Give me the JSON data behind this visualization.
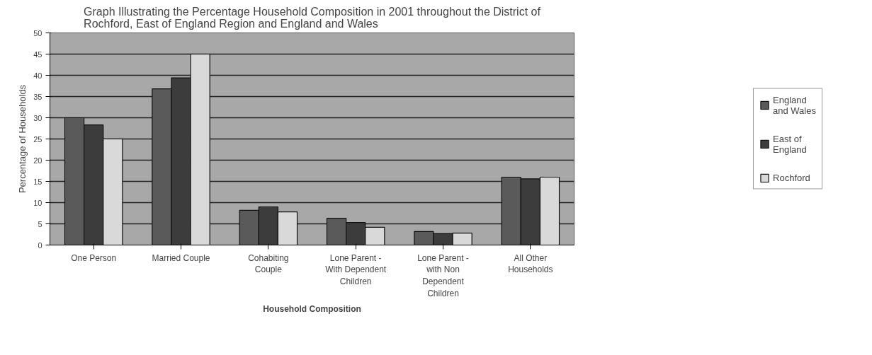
{
  "chart_data": {
    "type": "bar",
    "title": "Graph Illustrating the Percentage Household Composition in 2001 throughout the District of Rochford, East of England Region and England and Wales",
    "xlabel": "Household Composition",
    "ylabel": "Percentage of Households",
    "categories": [
      "One Person",
      "Married Couple",
      "Cohabiting Couple",
      "Lone Parent - With Dependent Children",
      "Lone Parent - with Non Dependent Children",
      "All Other Households"
    ],
    "series": [
      {
        "name": "England and Wales",
        "color": "#5a5a5a",
        "values": [
          30,
          36.8,
          8.2,
          6.3,
          3.2,
          16
        ]
      },
      {
        "name": "East of England",
        "color": "#3c3c3c",
        "values": [
          28.3,
          39.4,
          9,
          5.3,
          2.7,
          15.6
        ]
      },
      {
        "name": "Rochford",
        "color": "#d9d9d9",
        "values": [
          25,
          45,
          7.8,
          4.2,
          2.8,
          16
        ]
      }
    ],
    "ylim": [
      0,
      50
    ],
    "yticks": [
      0,
      5,
      10,
      15,
      20,
      25,
      30,
      35,
      40,
      45,
      50
    ],
    "grid": "y",
    "legend": "right"
  }
}
